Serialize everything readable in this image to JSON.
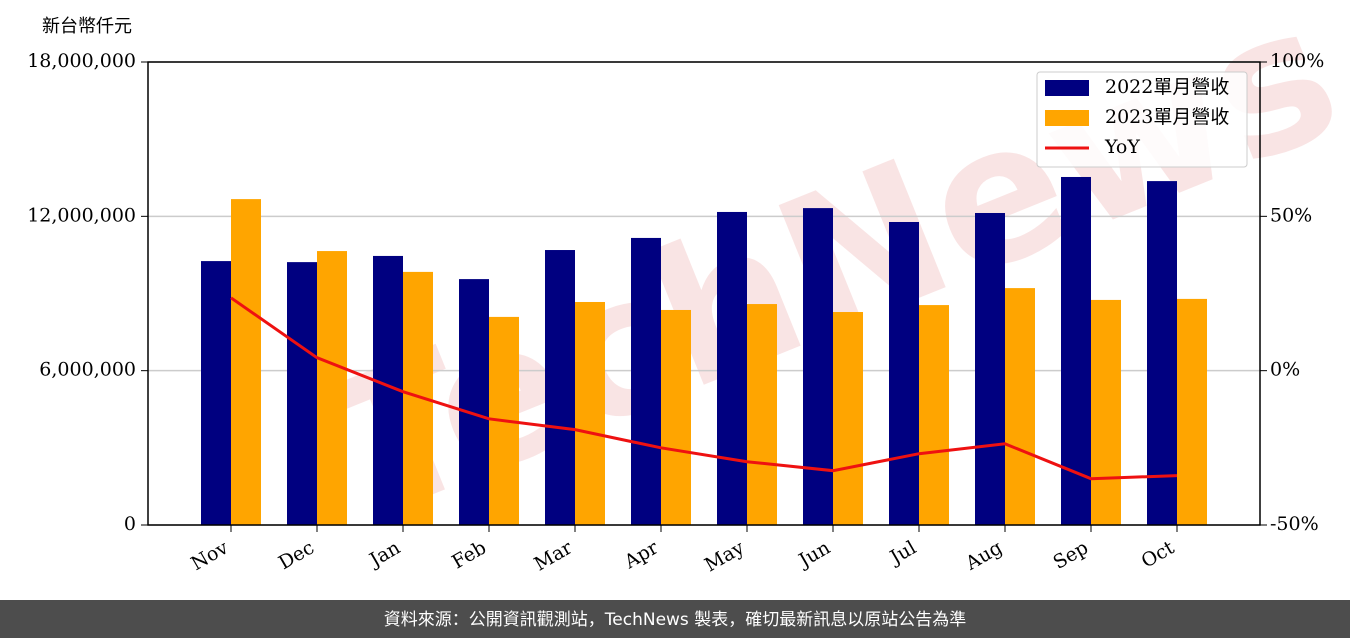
{
  "chart_data": {
    "type": "bar",
    "y_label": "新台幣仟元",
    "categories": [
      "Nov",
      "Dec",
      "Jan",
      "Feb",
      "Mar",
      "Apr",
      "May",
      "Jun",
      "Jul",
      "Aug",
      "Sep",
      "Oct"
    ],
    "series": [
      {
        "name": "2022單月營收",
        "color": "#000080",
        "type": "bar",
        "values": [
          10260000,
          10220000,
          10460000,
          9560000,
          10690000,
          11160000,
          12170000,
          12320000,
          11780000,
          12130000,
          13530000,
          13370000
        ]
      },
      {
        "name": "2023單月營收",
        "color": "#ffa500",
        "type": "bar",
        "values": [
          12670000,
          10650000,
          9840000,
          8090000,
          8670000,
          8360000,
          8590000,
          8280000,
          8550000,
          9210000,
          8750000,
          8790000
        ]
      },
      {
        "name": "YoY",
        "color": "#ee1111",
        "type": "line",
        "axis": "y2",
        "values": [
          23.6,
          4.2,
          -6.8,
          -15.6,
          -19.1,
          -25.0,
          -29.5,
          -32.4,
          -26.9,
          -23.7,
          -35.0,
          -34.0
        ]
      }
    ],
    "ylim": [
      0,
      18000000
    ],
    "yticks": [
      0,
      {
        "value": 6000000,
        "label": "6,000,000"
      },
      {
        "value": 12000000,
        "label": "12,000,000"
      },
      {
        "value": 18000000,
        "label": "18,000,000"
      }
    ],
    "y2lim": [
      -50,
      100
    ],
    "y2ticks": [
      {
        "value": -50,
        "label": "-50%"
      },
      {
        "value": 0,
        "label": "0%"
      },
      {
        "value": 50,
        "label": "50%"
      },
      {
        "value": 100,
        "label": "100%"
      }
    ],
    "grid": true,
    "legend": "upper right",
    "watermark": "TechNews",
    "footer": "資料來源：公開資訊觀測站，TechNews 製表，確切最新訊息以原站公告為準"
  }
}
